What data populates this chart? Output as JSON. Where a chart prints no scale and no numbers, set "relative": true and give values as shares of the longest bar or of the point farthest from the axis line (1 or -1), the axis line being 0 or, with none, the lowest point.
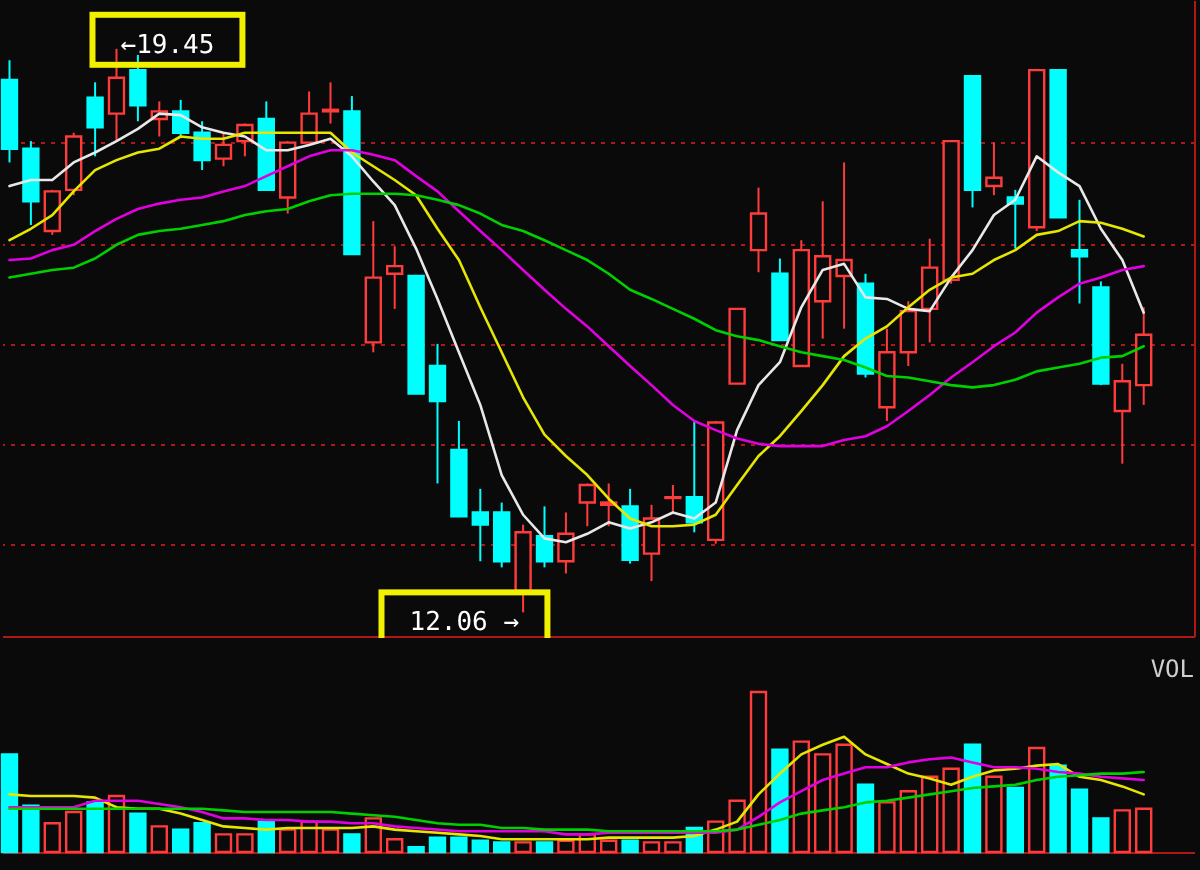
{
  "chart_data": [
    {
      "type": "candlestick",
      "tick_labels": false,
      "grid": "y",
      "ylim": [
        11.75,
        20.09
      ],
      "yticks": [
        {
          "value": 12.96,
          "label": null
        },
        {
          "value": 14.27,
          "label": null
        },
        {
          "value": 15.58,
          "label": null
        },
        {
          "value": 16.88,
          "label": null
        },
        {
          "value": 18.22,
          "label": null
        }
      ],
      "categories": [
        null,
        null,
        null,
        null,
        null,
        null,
        null,
        null,
        null,
        null,
        null,
        null,
        null,
        null,
        null,
        null,
        null,
        null,
        null,
        null,
        null,
        null,
        null,
        null,
        null,
        null,
        null,
        null,
        null,
        null,
        null,
        null,
        null,
        null,
        null,
        null,
        null,
        null,
        null,
        null,
        null,
        null,
        null,
        null,
        null,
        null,
        null,
        null,
        null,
        null,
        null,
        null,
        null,
        null
      ],
      "ohlc": [
        [
          19.04,
          19.3,
          17.96,
          18.14
        ],
        [
          18.14,
          18.24,
          17.14,
          17.45
        ],
        [
          17.06,
          17.6,
          17.01,
          17.58
        ],
        [
          17.6,
          18.35,
          17.53,
          18.3
        ],
        [
          18.81,
          19.01,
          18.04,
          18.42
        ],
        [
          18.6,
          19.45,
          18.24,
          19.07
        ],
        [
          19.17,
          19.37,
          18.5,
          18.71
        ],
        [
          18.53,
          18.76,
          18.3,
          18.63
        ],
        [
          18.63,
          18.78,
          18.3,
          18.35
        ],
        [
          18.35,
          18.5,
          17.86,
          17.99
        ],
        [
          18.01,
          18.35,
          17.91,
          18.19
        ],
        [
          18.24,
          18.47,
          18.04,
          18.45
        ],
        [
          18.53,
          18.76,
          17.6,
          17.6
        ],
        [
          17.5,
          18.24,
          17.29,
          18.22
        ],
        [
          18.22,
          18.89,
          18.22,
          18.6
        ],
        [
          18.63,
          19.01,
          18.47,
          18.65
        ],
        [
          18.63,
          18.83,
          16.76,
          16.76
        ],
        [
          15.6,
          17.19,
          15.47,
          16.45
        ],
        [
          16.5,
          16.86,
          16.04,
          16.6
        ],
        [
          16.47,
          16.47,
          14.93,
          14.93
        ],
        [
          15.29,
          15.58,
          13.75,
          14.83
        ],
        [
          14.19,
          14.57,
          13.32,
          13.32
        ],
        [
          13.37,
          13.68,
          12.73,
          13.21
        ],
        [
          13.37,
          13.5,
          12.65,
          12.73
        ],
        [
          12.34,
          13.21,
          12.06,
          13.11
        ],
        [
          13.06,
          13.45,
          12.65,
          12.73
        ],
        [
          12.73,
          13.37,
          12.57,
          13.09
        ],
        [
          13.5,
          13.75,
          13.19,
          13.73
        ],
        [
          13.47,
          13.75,
          13.19,
          13.5
        ],
        [
          13.45,
          13.68,
          12.7,
          12.75
        ],
        [
          12.83,
          13.47,
          12.47,
          13.29
        ],
        [
          13.56,
          13.73,
          13.37,
          13.57
        ],
        [
          13.57,
          14.57,
          13.11,
          13.24
        ],
        [
          13.01,
          14.57,
          12.96,
          14.55
        ],
        [
          15.06,
          16.04,
          15.06,
          16.04
        ],
        [
          16.81,
          17.63,
          16.52,
          17.29
        ],
        [
          16.5,
          16.7,
          15.63,
          15.63
        ],
        [
          15.29,
          16.94,
          15.29,
          16.81
        ],
        [
          16.14,
          17.45,
          15.65,
          16.73
        ],
        [
          16.47,
          17.96,
          15.78,
          16.68
        ],
        [
          16.37,
          16.5,
          15.14,
          15.19
        ],
        [
          14.75,
          15.78,
          14.57,
          15.47
        ],
        [
          15.47,
          16.14,
          15.29,
          16.01
        ],
        [
          16.04,
          16.96,
          15.6,
          16.58
        ],
        [
          16.42,
          18.24,
          16.37,
          18.24
        ],
        [
          19.09,
          19.09,
          17.37,
          17.6
        ],
        [
          17.65,
          18.22,
          17.53,
          17.76
        ],
        [
          17.5,
          17.6,
          16.83,
          17.42
        ],
        [
          17.11,
          19.17,
          17.06,
          19.17
        ],
        [
          19.17,
          19.17,
          17.24,
          17.24
        ],
        [
          16.81,
          17.47,
          16.11,
          16.73
        ],
        [
          16.32,
          16.4,
          15.04,
          15.06
        ],
        [
          14.7,
          15.32,
          14.01,
          15.09
        ],
        [
          15.04,
          16.06,
          14.78,
          15.7
        ]
      ],
      "colors": [
        "#00ffff",
        "#00ffff",
        "#ff3c3c",
        "#ff3c3c",
        "#00ffff",
        "#ff3c3c",
        "#00ffff",
        "#ff3c3c",
        "#00ffff",
        "#00ffff",
        "#ff3c3c",
        "#ff3c3c",
        "#00ffff",
        "#ff3c3c",
        "#ff3c3c",
        "#ff3c3c",
        "#00ffff",
        "#ff3c3c",
        "#ff3c3c",
        "#00ffff",
        "#00ffff",
        "#00ffff",
        "#00ffff",
        "#00ffff",
        "#ff3c3c",
        "#00ffff",
        "#ff3c3c",
        "#ff3c3c",
        "#ff3c3c",
        "#00ffff",
        "#ff3c3c",
        "#ff3c3c",
        "#00ffff",
        "#ff3c3c",
        "#ff3c3c",
        "#ff3c3c",
        "#00ffff",
        "#ff3c3c",
        "#ff3c3c",
        "#ff3c3c",
        "#00ffff",
        "#ff3c3c",
        "#ff3c3c",
        "#ff3c3c",
        "#ff3c3c",
        "#00ffff",
        "#ff3c3c",
        "#00ffff",
        "#ff3c3c",
        "#00ffff",
        "#00ffff",
        "#00ffff",
        "#ff3c3c",
        "#ff3c3c"
      ],
      "series": [
        {
          "type": "line",
          "color": "#e8e8e8",
          "values": [
            17.65,
            17.73,
            17.73,
            17.96,
            18.09,
            18.24,
            18.4,
            18.6,
            18.58,
            18.42,
            18.35,
            18.3,
            18.12,
            18.12,
            18.19,
            18.27,
            18.04,
            17.71,
            17.4,
            16.83,
            16.17,
            15.47,
            14.78,
            13.86,
            13.34,
            13.03,
            12.98,
            13.09,
            13.24,
            13.16,
            13.24,
            13.37,
            13.29,
            13.5,
            14.45,
            15.04,
            15.34,
            16.06,
            16.55,
            16.63,
            16.19,
            16.17,
            16.04,
            16.01,
            16.45,
            16.81,
            17.27,
            17.47,
            18.04,
            17.83,
            17.65,
            17.09,
            16.68,
            15.99
          ]
        },
        {
          "type": "line",
          "color": "#e6e600",
          "values": [
            16.94,
            17.09,
            17.27,
            17.58,
            17.86,
            17.99,
            18.09,
            18.14,
            18.3,
            18.27,
            18.27,
            18.35,
            18.35,
            18.35,
            18.35,
            18.35,
            18.09,
            17.91,
            17.73,
            17.53,
            17.09,
            16.68,
            16.06,
            15.47,
            14.88,
            14.39,
            14.11,
            13.86,
            13.55,
            13.29,
            13.19,
            13.19,
            13.21,
            13.34,
            13.73,
            14.11,
            14.37,
            14.7,
            15.04,
            15.42,
            15.65,
            15.81,
            16.06,
            16.29,
            16.45,
            16.5,
            16.68,
            16.81,
            17.01,
            17.06,
            17.19,
            17.17,
            17.09,
            16.99
          ]
        },
        {
          "type": "line",
          "color": "#e000e0",
          "values": [
            16.68,
            16.7,
            16.81,
            16.88,
            17.06,
            17.22,
            17.35,
            17.42,
            17.47,
            17.5,
            17.58,
            17.65,
            17.78,
            17.91,
            18.04,
            18.12,
            18.12,
            18.06,
            17.99,
            17.78,
            17.58,
            17.32,
            17.06,
            16.81,
            16.55,
            16.29,
            16.04,
            15.81,
            15.55,
            15.29,
            15.04,
            14.78,
            14.57,
            14.45,
            14.34,
            14.27,
            14.24,
            14.24,
            14.24,
            14.32,
            14.37,
            14.5,
            14.7,
            14.91,
            15.14,
            15.34,
            15.55,
            15.73,
            15.99,
            16.19,
            16.37,
            16.45,
            16.55,
            16.6
          ]
        },
        {
          "type": "line",
          "color": "#00d000",
          "values": [
            16.45,
            16.5,
            16.55,
            16.58,
            16.7,
            16.88,
            17.01,
            17.06,
            17.09,
            17.14,
            17.19,
            17.27,
            17.32,
            17.35,
            17.45,
            17.53,
            17.55,
            17.55,
            17.55,
            17.53,
            17.47,
            17.4,
            17.29,
            17.14,
            17.06,
            16.94,
            16.81,
            16.68,
            16.5,
            16.29,
            16.17,
            16.04,
            15.91,
            15.76,
            15.68,
            15.63,
            15.55,
            15.47,
            15.42,
            15.37,
            15.27,
            15.16,
            15.14,
            15.09,
            15.04,
            15.01,
            15.04,
            15.11,
            15.22,
            15.27,
            15.32,
            15.4,
            15.42,
            15.55
          ]
        }
      ],
      "annotations": [
        "←19.45",
        "12.06 →"
      ]
    },
    {
      "type": "bar",
      "title": "VOL",
      "relative": true,
      "tick_labels": false,
      "categories": [
        null,
        null,
        null,
        null,
        null,
        null,
        null,
        null,
        null,
        null,
        null,
        null,
        null,
        null,
        null,
        null,
        null,
        null,
        null,
        null,
        null,
        null,
        null,
        null,
        null,
        null,
        null,
        null,
        null,
        null,
        null,
        null,
        null,
        null,
        null,
        null,
        null,
        null,
        null,
        null,
        null,
        null,
        null,
        null,
        null,
        null,
        null,
        null,
        null,
        null,
        null,
        null,
        null,
        null
      ],
      "series": [
        {
          "type": "bar",
          "values": [
            0.61,
            0.29,
            0.18,
            0.25,
            0.31,
            0.35,
            0.24,
            0.16,
            0.14,
            0.18,
            0.11,
            0.11,
            0.19,
            0.14,
            0.19,
            0.14,
            0.11,
            0.21,
            0.08,
            0.03,
            0.09,
            0.09,
            0.07,
            0.06,
            0.06,
            0.06,
            0.07,
            0.11,
            0.07,
            0.07,
            0.06,
            0.06,
            0.15,
            0.19,
            0.32,
            1,
            0.64,
            0.69,
            0.61,
            0.67,
            0.42,
            0.31,
            0.38,
            0.47,
            0.52,
            0.67,
            0.47,
            0.4,
            0.65,
            0.54,
            0.39,
            0.21,
            0.26,
            0.27
          ],
          "colors": [
            "#00ffff",
            "#00ffff",
            "#ff3c3c",
            "#ff3c3c",
            "#00ffff",
            "#ff3c3c",
            "#00ffff",
            "#ff3c3c",
            "#00ffff",
            "#00ffff",
            "#ff3c3c",
            "#ff3c3c",
            "#00ffff",
            "#ff3c3c",
            "#ff3c3c",
            "#ff3c3c",
            "#00ffff",
            "#ff3c3c",
            "#ff3c3c",
            "#00ffff",
            "#00ffff",
            "#00ffff",
            "#00ffff",
            "#00ffff",
            "#ff3c3c",
            "#00ffff",
            "#ff3c3c",
            "#ff3c3c",
            "#ff3c3c",
            "#00ffff",
            "#ff3c3c",
            "#ff3c3c",
            "#00ffff",
            "#ff3c3c",
            "#ff3c3c",
            "#ff3c3c",
            "#00ffff",
            "#ff3c3c",
            "#ff3c3c",
            "#ff3c3c",
            "#00ffff",
            "#ff3c3c",
            "#ff3c3c",
            "#ff3c3c",
            "#ff3c3c",
            "#00ffff",
            "#ff3c3c",
            "#00ffff",
            "#ff3c3c",
            "#00ffff",
            "#00ffff",
            "#00ffff",
            "#ff3c3c",
            "#ff3c3c"
          ]
        },
        {
          "type": "line",
          "color": "#e6e600",
          "values": [
            0.36,
            0.35,
            0.35,
            0.35,
            0.34,
            0.28,
            0.27,
            0.27,
            0.24,
            0.2,
            0.16,
            0.15,
            0.14,
            0.15,
            0.15,
            0.15,
            0.15,
            0.16,
            0.14,
            0.13,
            0.12,
            0.11,
            0.1,
            0.08,
            0.08,
            0.08,
            0.08,
            0.08,
            0.09,
            0.09,
            0.09,
            0.09,
            0.1,
            0.14,
            0.19,
            0.36,
            0.49,
            0.61,
            0.67,
            0.72,
            0.61,
            0.55,
            0.49,
            0.46,
            0.42,
            0.47,
            0.51,
            0.52,
            0.54,
            0.55,
            0.47,
            0.45,
            0.41,
            0.36
          ]
        },
        {
          "type": "line",
          "color": "#e000e0",
          "values": [
            0.28,
            0.28,
            0.28,
            0.28,
            0.32,
            0.32,
            0.32,
            0.3,
            0.28,
            0.25,
            0.21,
            0.21,
            0.2,
            0.2,
            0.19,
            0.19,
            0.18,
            0.18,
            0.16,
            0.15,
            0.14,
            0.13,
            0.13,
            0.13,
            0.13,
            0.13,
            0.11,
            0.11,
            0.12,
            0.12,
            0.12,
            0.12,
            0.12,
            0.12,
            0.14,
            0.22,
            0.31,
            0.38,
            0.45,
            0.49,
            0.53,
            0.53,
            0.56,
            0.58,
            0.59,
            0.56,
            0.53,
            0.53,
            0.52,
            0.5,
            0.49,
            0.47,
            0.46,
            0.45
          ]
        },
        {
          "type": "line",
          "color": "#00d000",
          "values": [
            0.27,
            0.27,
            0.27,
            0.27,
            0.27,
            0.27,
            0.27,
            0.27,
            0.27,
            0.27,
            0.26,
            0.25,
            0.25,
            0.25,
            0.25,
            0.25,
            0.24,
            0.23,
            0.22,
            0.2,
            0.18,
            0.17,
            0.17,
            0.15,
            0.15,
            0.14,
            0.14,
            0.14,
            0.13,
            0.13,
            0.13,
            0.13,
            0.13,
            0.13,
            0.14,
            0.17,
            0.2,
            0.24,
            0.26,
            0.28,
            0.31,
            0.32,
            0.34,
            0.36,
            0.38,
            0.4,
            0.41,
            0.42,
            0.45,
            0.47,
            0.48,
            0.49,
            0.49,
            0.5
          ]
        }
      ]
    }
  ]
}
